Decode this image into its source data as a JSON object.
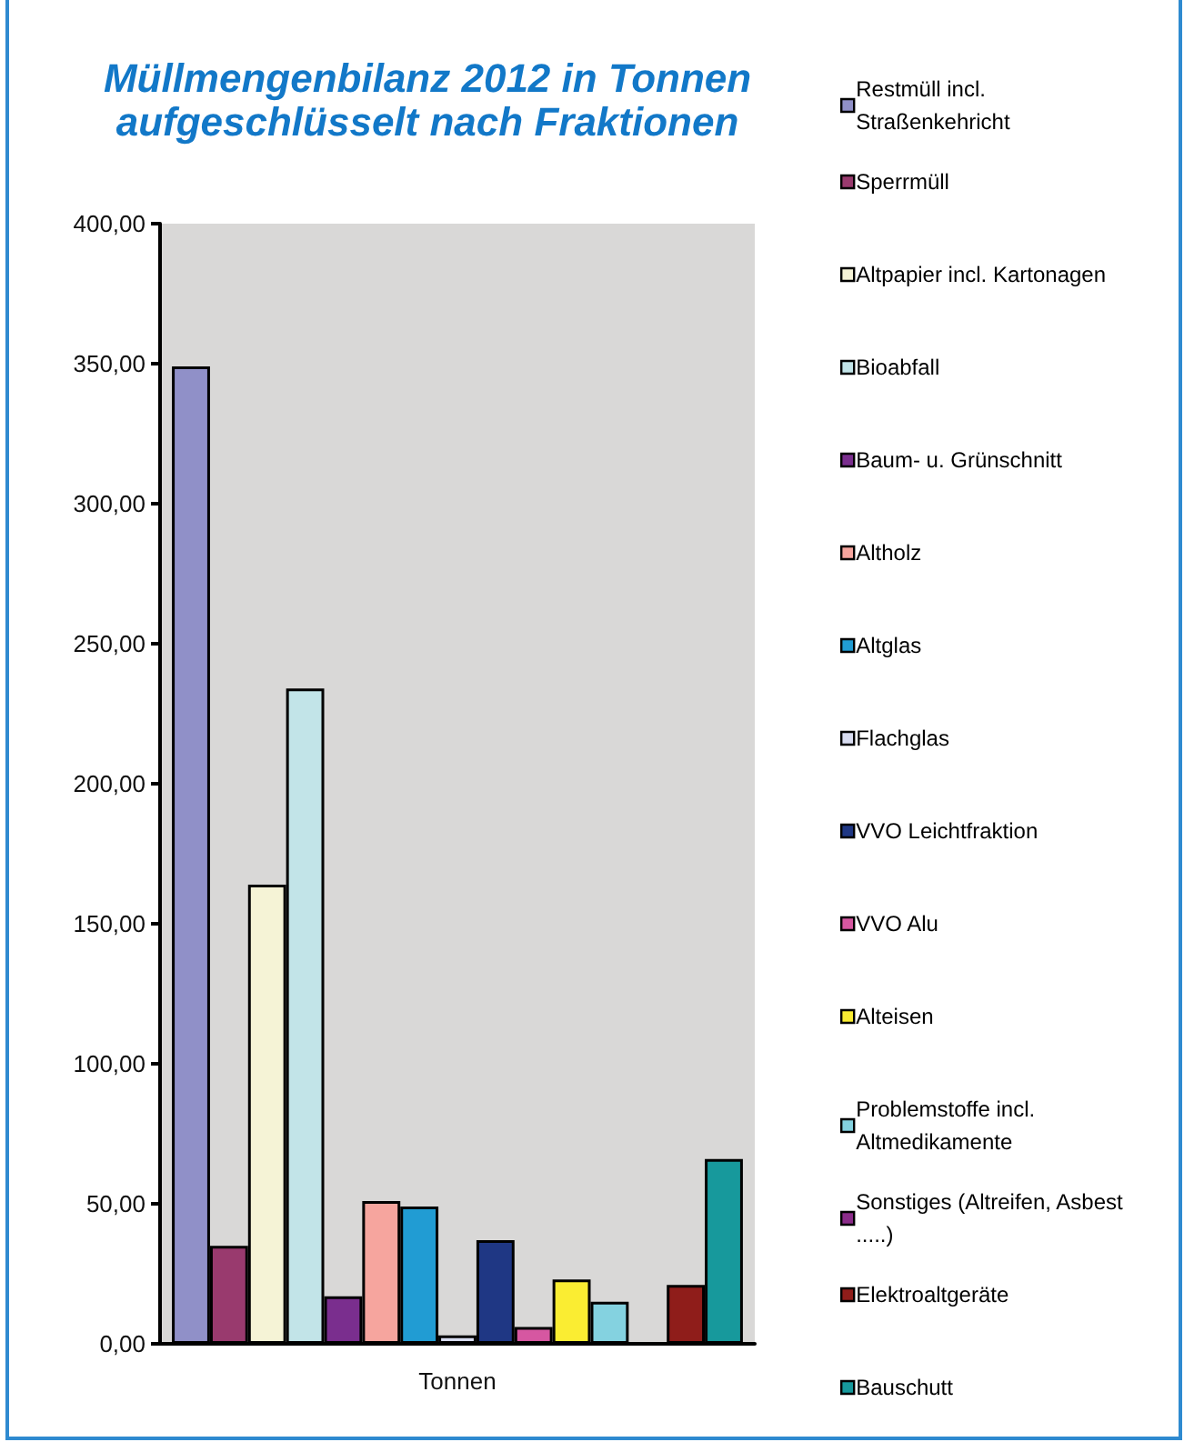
{
  "chart_data": {
    "type": "bar",
    "title": "Müllmengenbilanz 2012 in Tonnen\naufgeschlüsselt nach Fraktionen",
    "categories": [
      "Tonnen"
    ],
    "series": [
      {
        "name": "Restmüll incl. Straßenkehricht",
        "color": "#9090c8",
        "values": [
          349
        ]
      },
      {
        "name": "Sperrmüll",
        "color": "#993a6e",
        "values": [
          35
        ]
      },
      {
        "name": "Altpapier incl. Kartonagen",
        "color": "#f5f3d6",
        "values": [
          164
        ]
      },
      {
        "name": "Bioabfall",
        "color": "#c2e4e8",
        "values": [
          234
        ]
      },
      {
        "name": "Baum- u. Grünschnitt",
        "color": "#7a2e8e",
        "values": [
          17
        ]
      },
      {
        "name": "Altholz",
        "color": "#f6a59e",
        "values": [
          51
        ]
      },
      {
        "name": "Altglas",
        "color": "#219cd3",
        "values": [
          49
        ]
      },
      {
        "name": "Flachglas",
        "color": "#d8dcf0",
        "values": [
          3
        ]
      },
      {
        "name": "VVO Leichtfraktion",
        "color": "#1f3784",
        "values": [
          37
        ]
      },
      {
        "name": "VVO Alu",
        "color": "#d657a1",
        "values": [
          6
        ]
      },
      {
        "name": "Alteisen",
        "color": "#faed32",
        "values": [
          23
        ]
      },
      {
        "name": "Problemstoffe incl. Altmedikamente",
        "color": "#84d2e0",
        "values": [
          15
        ]
      },
      {
        "name": "Sonstiges (Altreifen, Asbest .....)",
        "color": "#8b2c8a",
        "values": [
          null
        ]
      },
      {
        "name": "Elektroaltgeräte",
        "color": "#8f1d1a",
        "values": [
          21
        ]
      },
      {
        "name": "Bauschutt",
        "color": "#17999c",
        "values": [
          66
        ]
      }
    ],
    "ylim": [
      0,
      400
    ],
    "yticks": [
      {
        "value": 0,
        "label": "0,00"
      },
      {
        "value": 50,
        "label": "50,00"
      },
      {
        "value": 100,
        "label": "100,00"
      },
      {
        "value": 150,
        "label": "150,00"
      },
      {
        "value": 200,
        "label": "200,00"
      },
      {
        "value": 250,
        "label": "250,00"
      },
      {
        "value": 300,
        "label": "300,00"
      },
      {
        "value": 350,
        "label": "350,00"
      },
      {
        "value": 400,
        "label": "400,00"
      }
    ],
    "grid": false,
    "legend": "right"
  }
}
